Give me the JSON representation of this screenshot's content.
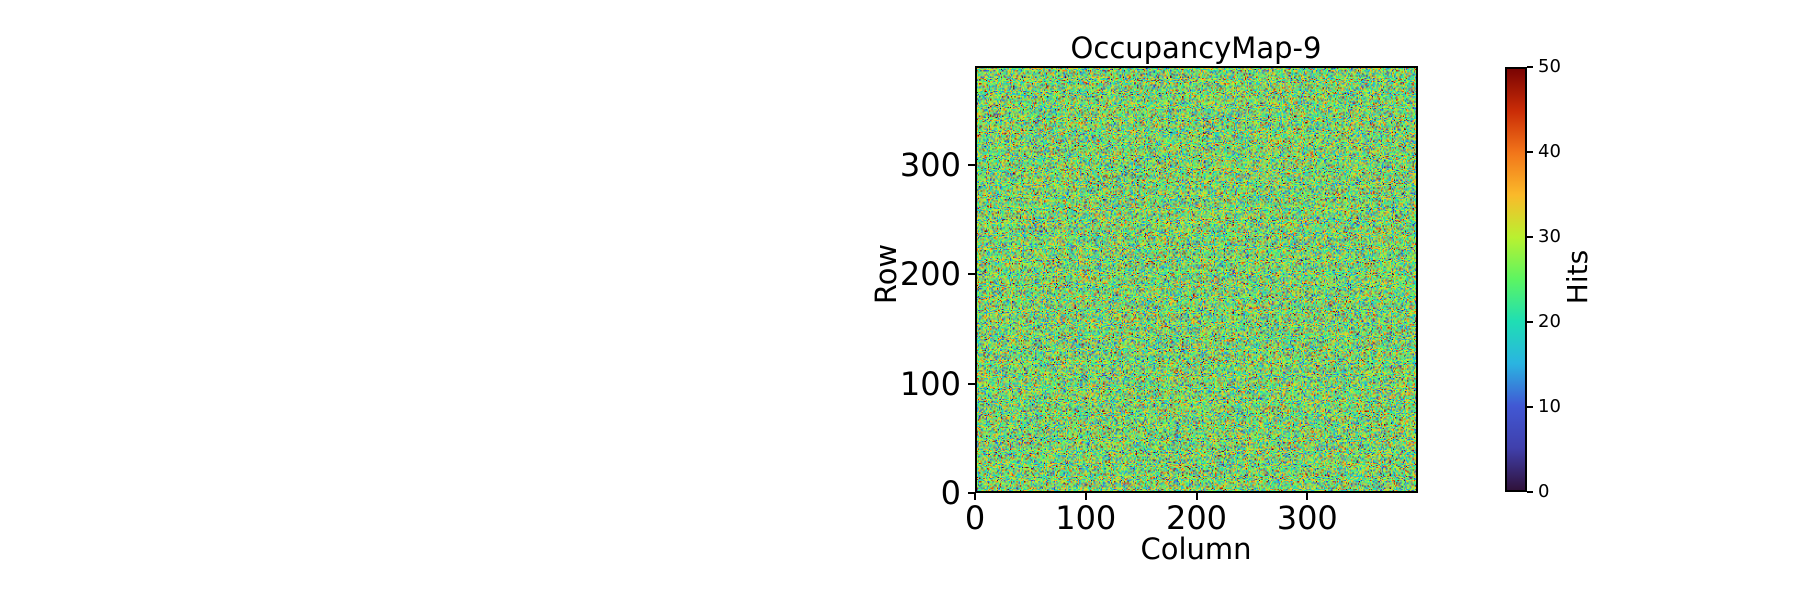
{
  "chart_data": {
    "type": "heatmap",
    "title": "OccupancyMap-9",
    "xlabel": "Column",
    "ylabel": "Row",
    "colorbar_label": "Hits",
    "x_range": [
      0,
      400
    ],
    "y_range": [
      0,
      390
    ],
    "grid_cols": 400,
    "grid_rows": 390,
    "x_ticks": [
      0,
      100,
      200,
      300
    ],
    "y_ticks": [
      0,
      100,
      200,
      300
    ],
    "vmin": 0,
    "vmax": 50,
    "colorbar_ticks": [
      0,
      10,
      20,
      30,
      40,
      50
    ],
    "grid": false,
    "legend_position": "colorbar-right",
    "values_summary": {
      "distribution": "per-cell random hit counts, roughly normal",
      "approx_mean": 25.5,
      "approx_sd": 9.5,
      "clip_min": 0,
      "clip_max": 50,
      "seed": 9
    },
    "colormap": {
      "name": "turbo-like",
      "stops": [
        {
          "t": 0.0,
          "rgb": [
            48,
            18,
            59
          ]
        },
        {
          "t": 0.1,
          "rgb": [
            64,
            64,
            172
          ]
        },
        {
          "t": 0.2,
          "rgb": [
            65,
            88,
            212
          ]
        },
        {
          "t": 0.3,
          "rgb": [
            42,
            180,
            225
          ]
        },
        {
          "t": 0.4,
          "rgb": [
            31,
            222,
            180
          ]
        },
        {
          "t": 0.5,
          "rgb": [
            92,
            245,
            98
          ]
        },
        {
          "t": 0.6,
          "rgb": [
            185,
            241,
            48
          ]
        },
        {
          "t": 0.7,
          "rgb": [
            250,
            186,
            42
          ]
        },
        {
          "t": 0.8,
          "rgb": [
            242,
            118,
            26
          ]
        },
        {
          "t": 0.9,
          "rgb": [
            202,
            44,
            6
          ]
        },
        {
          "t": 1.0,
          "rgb": [
            122,
            4,
            3
          ]
        }
      ]
    },
    "colors": {
      "background": "#ffffff",
      "axes_edge": "#000000",
      "text": "#000000"
    }
  }
}
